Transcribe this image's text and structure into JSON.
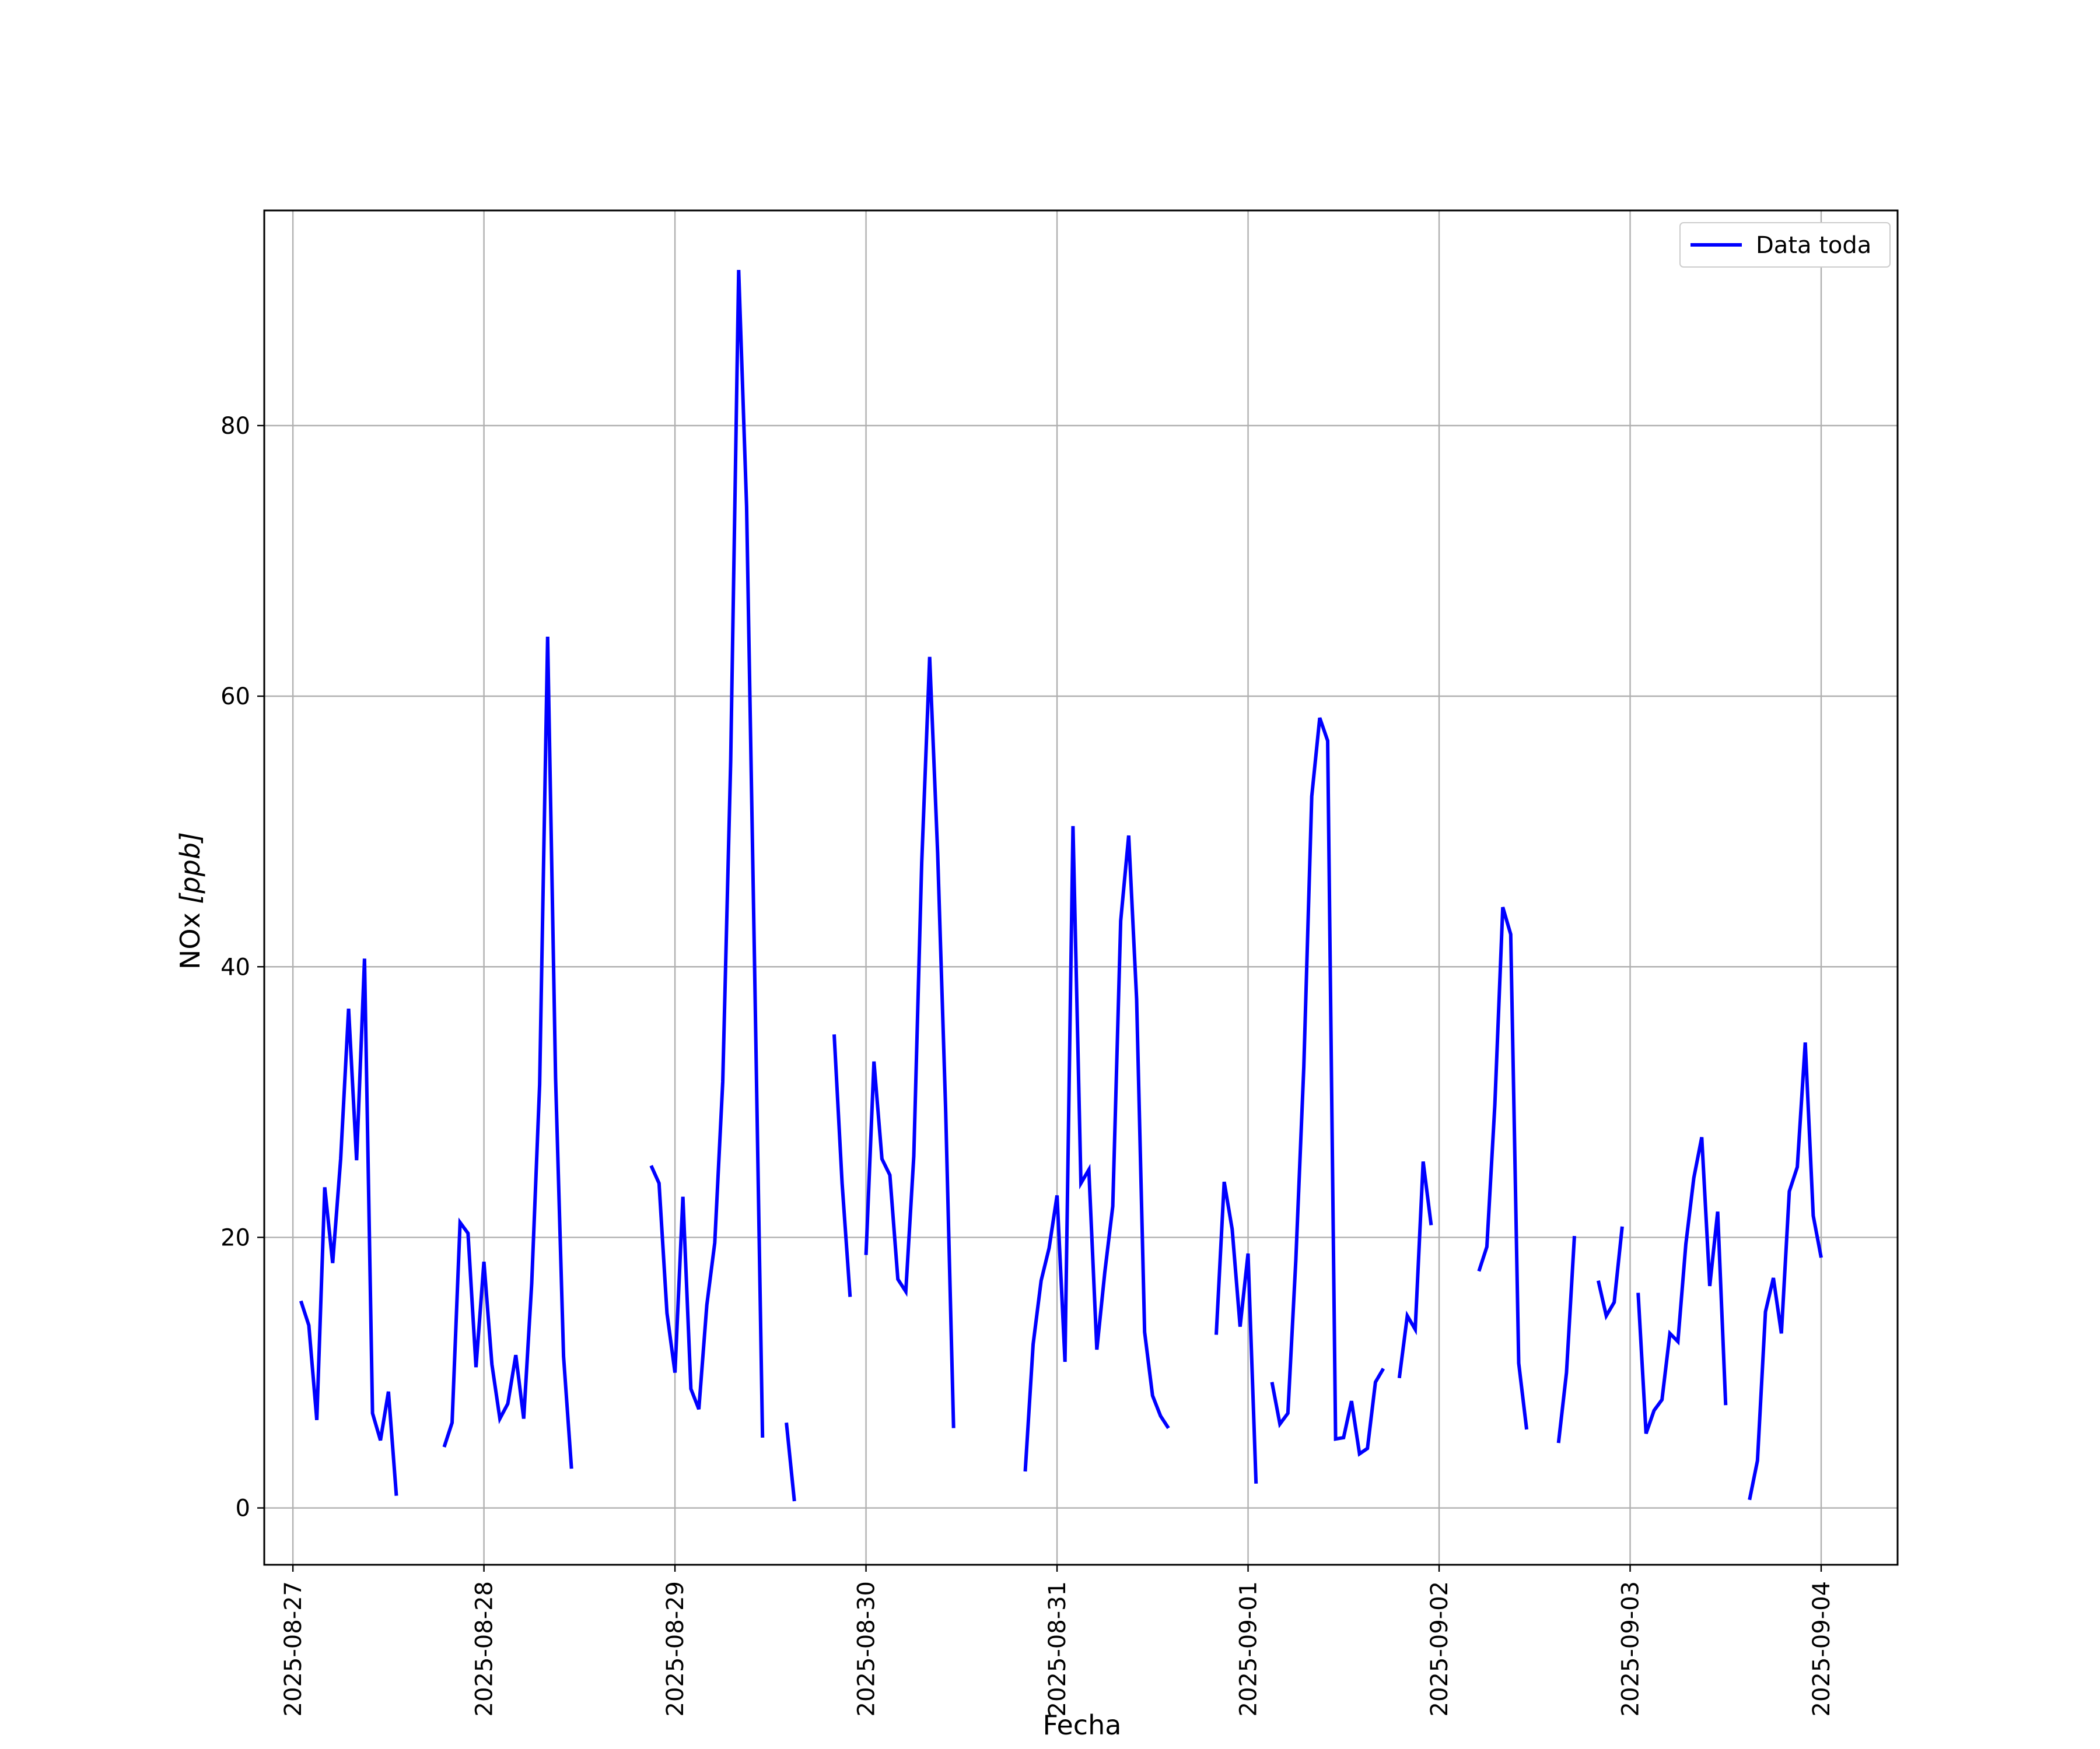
{
  "chart_data": {
    "type": "line",
    "title": "",
    "xlabel": "Fecha",
    "ylabel_main": "NOx ",
    "ylabel_unit": "[ppb]",
    "x_axis_type": "date",
    "xlim": [
      "2025-08-26T20:24",
      "2025-09-04T09:36"
    ],
    "ylim": [
      -4.2,
      95.9
    ],
    "x_ticks": [
      "2025-08-27",
      "2025-08-28",
      "2025-08-29",
      "2025-08-30",
      "2025-08-31",
      "2025-09-01",
      "2025-09-02",
      "2025-09-03",
      "2025-09-04"
    ],
    "y_ticks": [
      0,
      20,
      40,
      60,
      80
    ],
    "grid": true,
    "legend_position": "top-right",
    "line_color": "#0000ff",
    "series": [
      {
        "name": "Data toda",
        "segments": [
          [
            [
              "2025-08-27T01:00",
              15.3
            ],
            [
              "2025-08-27T02:00",
              13.5
            ],
            [
              "2025-08-27T03:00",
              6.5
            ],
            [
              "2025-08-27T04:00",
              23.7
            ],
            [
              "2025-08-27T05:00",
              18.1
            ],
            [
              "2025-08-27T06:00",
              25.8
            ],
            [
              "2025-08-27T07:00",
              36.9
            ],
            [
              "2025-08-27T08:00",
              25.7
            ],
            [
              "2025-08-27T09:00",
              40.6
            ],
            [
              "2025-08-27T10:00",
              7.0
            ],
            [
              "2025-08-27T11:00",
              5.0
            ],
            [
              "2025-08-27T12:00",
              8.6
            ],
            [
              "2025-08-27T13:00",
              0.9
            ]
          ],
          [
            [
              "2025-08-27T19:00",
              4.5
            ],
            [
              "2025-08-27T20:00",
              6.3
            ],
            [
              "2025-08-27T21:00",
              21.1
            ],
            [
              "2025-08-27T22:00",
              20.3
            ],
            [
              "2025-08-27T23:00",
              10.4
            ],
            [
              "2025-08-28T00:00",
              18.2
            ],
            [
              "2025-08-28T01:00",
              10.6
            ],
            [
              "2025-08-28T02:00",
              6.6
            ],
            [
              "2025-08-28T03:00",
              7.7
            ],
            [
              "2025-08-28T04:00",
              11.3
            ],
            [
              "2025-08-28T05:00",
              6.6
            ],
            [
              "2025-08-28T06:00",
              16.6
            ],
            [
              "2025-08-28T07:00",
              31.3
            ],
            [
              "2025-08-28T08:00",
              64.4
            ],
            [
              "2025-08-28T09:00",
              31.8
            ],
            [
              "2025-08-28T10:00",
              11.2
            ],
            [
              "2025-08-28T11:00",
              2.9
            ]
          ],
          [
            [
              "2025-08-28T21:00",
              25.3
            ],
            [
              "2025-08-28T22:00",
              24.0
            ],
            [
              "2025-08-28T23:00",
              14.4
            ],
            [
              "2025-08-29T00:00",
              10.0
            ],
            [
              "2025-08-29T01:00",
              23.0
            ],
            [
              "2025-08-29T02:00",
              8.8
            ],
            [
              "2025-08-29T03:00",
              7.3
            ],
            [
              "2025-08-29T04:00",
              15.0
            ],
            [
              "2025-08-29T05:00",
              19.6
            ],
            [
              "2025-08-29T06:00",
              31.5
            ],
            [
              "2025-08-29T07:00",
              55.2
            ],
            [
              "2025-08-29T08:00",
              91.5
            ],
            [
              "2025-08-29T09:00",
              74.0
            ],
            [
              "2025-08-29T10:00",
              40.2
            ],
            [
              "2025-08-29T11:00",
              5.2
            ]
          ],
          [
            [
              "2025-08-29T14:00",
              6.3
            ],
            [
              "2025-08-29T15:00",
              0.5
            ]
          ],
          [
            [
              "2025-08-29T20:00",
              35.0
            ],
            [
              "2025-08-29T21:00",
              24.0
            ],
            [
              "2025-08-29T22:00",
              15.6
            ]
          ],
          [
            [
              "2025-08-30T00:00",
              18.7
            ],
            [
              "2025-08-30T01:00",
              33.0
            ],
            [
              "2025-08-30T02:00",
              25.8
            ],
            [
              "2025-08-30T03:00",
              24.6
            ],
            [
              "2025-08-30T04:00",
              16.9
            ],
            [
              "2025-08-30T05:00",
              16.0
            ],
            [
              "2025-08-30T06:00",
              26.0
            ],
            [
              "2025-08-30T07:00",
              47.7
            ],
            [
              "2025-08-30T08:00",
              62.9
            ],
            [
              "2025-08-30T09:00",
              48.4
            ],
            [
              "2025-08-30T10:00",
              29.6
            ],
            [
              "2025-08-30T11:00",
              5.9
            ]
          ],
          [
            [
              "2025-08-30T20:00",
              2.7
            ],
            [
              "2025-08-30T21:00",
              12.1
            ],
            [
              "2025-08-30T22:00",
              16.8
            ],
            [
              "2025-08-30T23:00",
              19.2
            ],
            [
              "2025-08-31T00:00",
              23.1
            ],
            [
              "2025-08-31T01:00",
              10.8
            ],
            [
              "2025-08-31T02:00",
              50.4
            ],
            [
              "2025-08-31T03:00",
              24.0
            ],
            [
              "2025-08-31T04:00",
              25.0
            ],
            [
              "2025-08-31T05:00",
              11.7
            ],
            [
              "2025-08-31T06:00",
              17.4
            ],
            [
              "2025-08-31T07:00",
              22.3
            ],
            [
              "2025-08-31T08:00",
              43.4
            ],
            [
              "2025-08-31T09:00",
              49.7
            ],
            [
              "2025-08-31T10:00",
              37.6
            ],
            [
              "2025-08-31T11:00",
              13.0
            ],
            [
              "2025-08-31T12:00",
              8.3
            ],
            [
              "2025-08-31T13:00",
              6.8
            ],
            [
              "2025-08-31T14:00",
              5.9
            ]
          ],
          [
            [
              "2025-08-31T20:00",
              12.8
            ],
            [
              "2025-08-31T21:00",
              24.1
            ],
            [
              "2025-08-31T22:00",
              20.6
            ],
            [
              "2025-08-31T23:00",
              13.4
            ],
            [
              "2025-09-01T00:00",
              18.8
            ],
            [
              "2025-09-01T01:00",
              1.8
            ]
          ],
          [
            [
              "2025-09-01T03:00",
              9.3
            ],
            [
              "2025-09-01T04:00",
              6.2
            ],
            [
              "2025-09-01T05:00",
              7.0
            ],
            [
              "2025-09-01T06:00",
              18.3
            ],
            [
              "2025-09-01T07:00",
              32.6
            ],
            [
              "2025-09-01T08:00",
              52.6
            ],
            [
              "2025-09-01T09:00",
              58.4
            ],
            [
              "2025-09-01T10:00",
              56.7
            ],
            [
              "2025-09-01T11:00",
              5.1
            ],
            [
              "2025-09-01T12:00",
              5.2
            ],
            [
              "2025-09-01T13:00",
              7.9
            ],
            [
              "2025-09-01T14:00",
              4.0
            ],
            [
              "2025-09-01T15:00",
              4.4
            ],
            [
              "2025-09-01T16:00",
              9.3
            ],
            [
              "2025-09-01T17:00",
              10.3
            ]
          ],
          [
            [
              "2025-09-01T19:00",
              9.6
            ],
            [
              "2025-09-01T20:00",
              14.2
            ],
            [
              "2025-09-01T21:00",
              13.2
            ],
            [
              "2025-09-01T22:00",
              25.6
            ],
            [
              "2025-09-01T23:00",
              20.9
            ]
          ],
          [
            [
              "2025-09-02T05:00",
              17.5
            ],
            [
              "2025-09-02T06:00",
              19.3
            ],
            [
              "2025-09-02T07:00",
              29.8
            ],
            [
              "2025-09-02T08:00",
              44.4
            ],
            [
              "2025-09-02T09:00",
              42.4
            ],
            [
              "2025-09-02T10:00",
              10.7
            ],
            [
              "2025-09-02T11:00",
              5.8
            ]
          ],
          [
            [
              "2025-09-02T15:00",
              4.8
            ],
            [
              "2025-09-02T16:00",
              10.0
            ],
            [
              "2025-09-02T17:00",
              20.1
            ]
          ],
          [
            [
              "2025-09-02T20:00",
              16.8
            ],
            [
              "2025-09-02T21:00",
              14.2
            ],
            [
              "2025-09-02T22:00",
              15.2
            ],
            [
              "2025-09-02T23:00",
              20.8
            ]
          ],
          [
            [
              "2025-09-03T01:00",
              15.9
            ],
            [
              "2025-09-03T02:00",
              5.5
            ],
            [
              "2025-09-03T03:00",
              7.2
            ],
            [
              "2025-09-03T04:00",
              8.0
            ],
            [
              "2025-09-03T05:00",
              12.9
            ],
            [
              "2025-09-03T06:00",
              12.3
            ],
            [
              "2025-09-03T07:00",
              19.5
            ],
            [
              "2025-09-03T08:00",
              24.4
            ],
            [
              "2025-09-03T09:00",
              27.4
            ],
            [
              "2025-09-03T10:00",
              16.4
            ],
            [
              "2025-09-03T11:00",
              21.9
            ],
            [
              "2025-09-03T12:00",
              7.6
            ]
          ],
          [
            [
              "2025-09-03T15:00",
              0.6
            ],
            [
              "2025-09-03T16:00",
              3.5
            ],
            [
              "2025-09-03T17:00",
              14.5
            ],
            [
              "2025-09-03T18:00",
              17.0
            ],
            [
              "2025-09-03T19:00",
              12.9
            ],
            [
              "2025-09-03T20:00",
              23.4
            ],
            [
              "2025-09-03T21:00",
              25.2
            ],
            [
              "2025-09-03T22:00",
              34.4
            ],
            [
              "2025-09-03T23:00",
              21.6
            ],
            [
              "2025-09-04T00:00",
              18.5
            ]
          ]
        ]
      }
    ]
  }
}
